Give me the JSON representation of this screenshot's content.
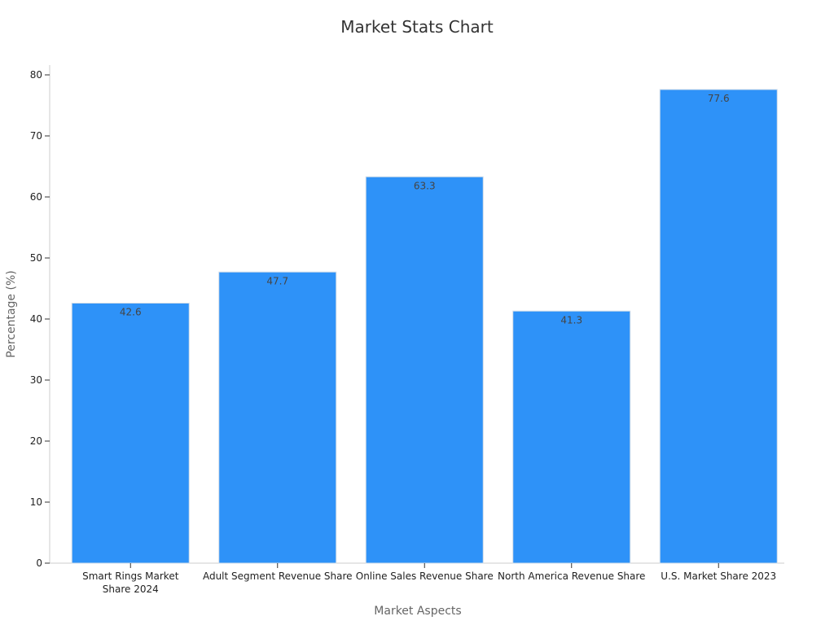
{
  "chart_data": {
    "type": "bar",
    "title": "Market Stats Chart",
    "xlabel": "Market Aspects",
    "ylabel": "Percentage (%)",
    "categories": [
      [
        "Smart Rings Market",
        "Share 2024"
      ],
      [
        "Adult Segment Revenue Share"
      ],
      [
        "Online Sales Revenue Share"
      ],
      [
        "North America Revenue Share"
      ],
      [
        "U.S. Market Share 2023"
      ]
    ],
    "values": [
      42.6,
      47.7,
      63.3,
      41.3,
      77.6
    ],
    "ylim": [
      0,
      80
    ],
    "yticks": [
      0,
      10,
      20,
      30,
      40,
      50,
      60,
      70,
      80
    ],
    "grid": false,
    "legend": "none",
    "bar_color": "#2e92f8",
    "bar_edge_color": "#d0dce8"
  }
}
